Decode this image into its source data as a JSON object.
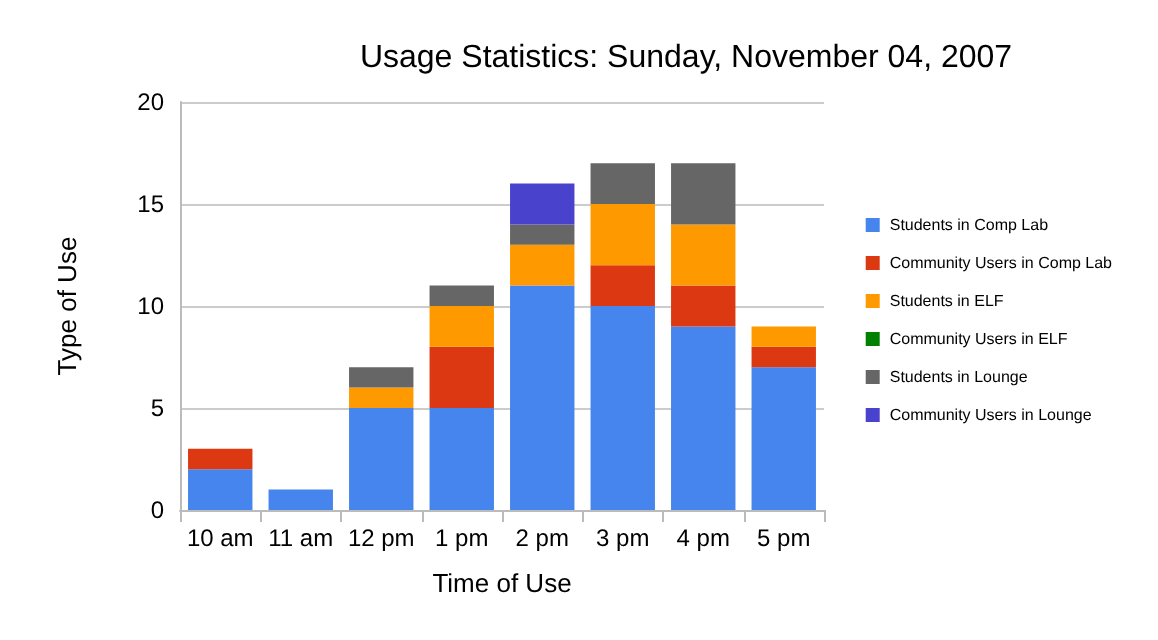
{
  "chart_data": {
    "type": "bar",
    "title": "Usage Statistics: Sunday, November 04, 2007",
    "xlabel": "Time of Use",
    "ylabel": "Type of Use",
    "categories": [
      "10 am",
      "11 am",
      "12 pm",
      "1 pm",
      "2 pm",
      "3 pm",
      "4 pm",
      "5 pm"
    ],
    "stacked": true,
    "series": [
      {
        "name": "Students in Comp Lab",
        "color": "#4684ee",
        "values": [
          2,
          1,
          5,
          5,
          11,
          10,
          9,
          7
        ]
      },
      {
        "name": "Community Users in Comp Lab",
        "color": "#dc3912",
        "values": [
          1,
          0,
          0,
          3,
          0,
          2,
          2,
          1
        ]
      },
      {
        "name": "Students in ELF",
        "color": "#ff9900",
        "values": [
          0,
          0,
          1,
          2,
          2,
          3,
          3,
          1
        ]
      },
      {
        "name": "Community Users in ELF",
        "color": "#008000",
        "values": [
          0,
          0,
          0,
          0,
          0,
          0,
          0,
          0
        ]
      },
      {
        "name": "Students in Lounge",
        "color": "#666666",
        "values": [
          0,
          0,
          1,
          1,
          1,
          2,
          3,
          0
        ]
      },
      {
        "name": "Community Users in Lounge",
        "color": "#4942cc",
        "values": [
          0,
          0,
          0,
          0,
          2,
          0,
          0,
          0
        ]
      }
    ],
    "ylim": [
      0,
      20
    ],
    "yticks": [
      0,
      5,
      10,
      15,
      20
    ],
    "grid": "y",
    "legend": "right"
  }
}
